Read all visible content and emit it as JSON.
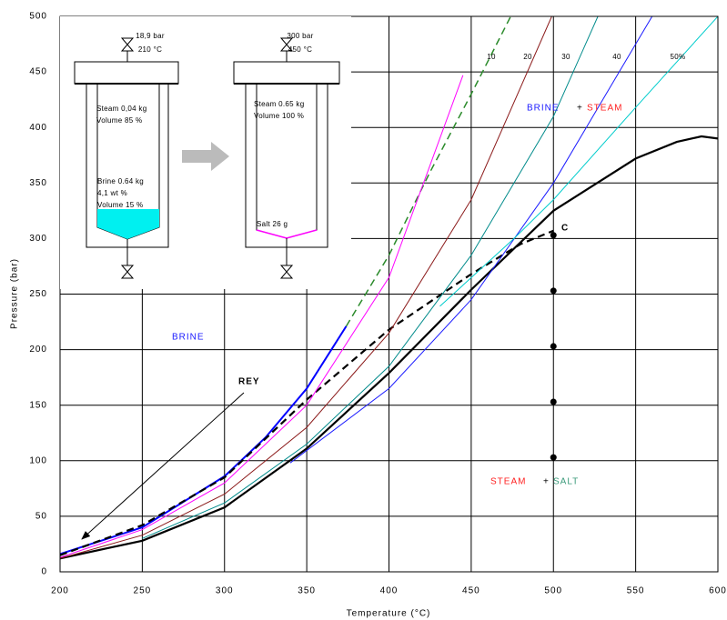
{
  "chart_data": {
    "type": "line",
    "xlabel": "Temperature (°C)",
    "ylabel": "Pressure (bar)",
    "xlim": [
      200,
      600
    ],
    "xticks": [
      200,
      250,
      300,
      350,
      400,
      450,
      500,
      550,
      600
    ],
    "ylim": [
      0,
      500
    ],
    "yticks": [
      0,
      50,
      100,
      150,
      200,
      250,
      300,
      350,
      400,
      450,
      500
    ],
    "grid": true,
    "series": [
      {
        "color": "#000000",
        "width": 2.2,
        "x": [
          200,
          250,
          300,
          350,
          400,
          450,
          500,
          550,
          575,
          590,
          600
        ],
        "values": [
          12,
          28,
          58,
          111,
          179,
          254,
          325,
          372,
          387,
          392,
          390
        ]
      },
      {
        "color": "#0000ff",
        "width": 2,
        "x": [
          200,
          250,
          300,
          325,
          350,
          374
        ],
        "values": [
          16,
          40,
          86,
          121,
          165,
          221
        ]
      },
      {
        "color": "#2a8a2a",
        "width": 1.5,
        "dashed": true,
        "x": [
          374,
          400,
          425,
          450,
          474
        ],
        "values": [
          221,
          285,
          360,
          430,
          500
        ]
      },
      {
        "color": "#000000",
        "width": 2.2,
        "dashed": true,
        "x": [
          200,
          250,
          300,
          350,
          400,
          450,
          480,
          500
        ],
        "values": [
          15,
          42,
          85,
          155,
          218,
          268,
          295,
          307
        ]
      },
      {
        "name": "10",
        "color": "#ff00ff",
        "width": 1,
        "x": [
          200,
          250,
          300,
          350,
          400,
          445
        ],
        "values": [
          13,
          38,
          80,
          150,
          265,
          447
        ]
      },
      {
        "name": "20",
        "color": "#8b1a1a",
        "width": 1,
        "x": [
          200,
          250,
          300,
          350,
          400,
          450,
          499
        ],
        "values": [
          12,
          33,
          70,
          130,
          215,
          335,
          500
        ]
      },
      {
        "name": "30",
        "color": "#008b8b",
        "width": 1,
        "x": [
          250,
          300,
          350,
          400,
          450,
          500,
          527
        ],
        "values": [
          30,
          62,
          115,
          185,
          285,
          410,
          500
        ]
      },
      {
        "name": "40",
        "color": "#1a1aff",
        "width": 1,
        "x": [
          340,
          400,
          450,
          500,
          540,
          560
        ],
        "values": [
          98,
          165,
          245,
          350,
          450,
          500
        ]
      },
      {
        "name": "50%",
        "color": "#00cccc",
        "width": 1,
        "x": [
          431,
          476,
          500,
          550,
          600
        ],
        "values": [
          239,
          300,
          335,
          418,
          500
        ]
      },
      {
        "color": "#000000",
        "mode": "markers",
        "x": [
          500,
          500,
          500,
          500,
          500
        ],
        "values": [
          103,
          153,
          203,
          253,
          303
        ]
      }
    ],
    "annotations": [
      {
        "text": "BRINE",
        "color": "#1a1aff"
      },
      {
        "text": "REY",
        "color": "#000000"
      },
      {
        "text": "C",
        "color": "#000000"
      },
      {
        "text": "BRINE",
        "color": "#1a1aff"
      },
      {
        "text": "+",
        "color": "#000000"
      },
      {
        "text": "STEAM",
        "color": "#ff2020"
      },
      {
        "text": "STEAM",
        "color": "#ff2020"
      },
      {
        "text": "+",
        "color": "#000000"
      },
      {
        "text": "SALT",
        "color": "#3a9a7a"
      }
    ],
    "inset": {
      "left": [
        "18,9 bar",
        "210 °C",
        "Steam 0,04 kg",
        "Volume 85 %",
        "Brine 0.64 kg",
        "4,1 wt %",
        "Volume 15 %"
      ],
      "right": [
        "300 bar",
        "450 °C",
        "Steam 0.65 kg",
        "Volume 100 %",
        "Salt 26 g"
      ]
    }
  }
}
